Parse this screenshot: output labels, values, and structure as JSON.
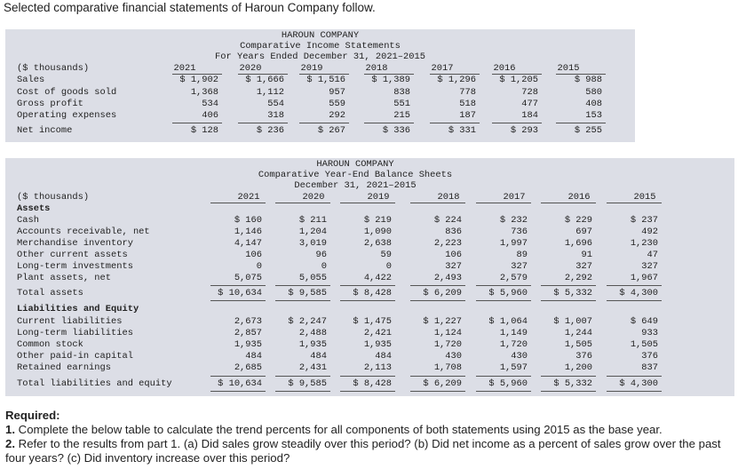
{
  "intro": "Selected comparative financial statements of Haroun Company follow.",
  "income": {
    "title": [
      "HAROUN COMPANY",
      "Comparative Income Statements",
      "For Years Ended December 31, 2021–2015"
    ],
    "unit_label": "($ thousands)",
    "years": [
      "2021",
      "2020",
      "2019",
      "2018",
      "2017",
      "2016",
      "2015"
    ],
    "rows": [
      {
        "label": "Sales",
        "values": [
          "$ 1,902",
          "$ 1,666",
          "$ 1,516",
          "$ 1,389",
          "$ 1,296",
          "$ 1,205",
          "$ 988"
        ]
      },
      {
        "label": "Cost of goods sold",
        "values": [
          "1,368",
          "1,112",
          "957",
          "838",
          "778",
          "728",
          "580"
        ]
      },
      {
        "label": "Gross profit",
        "values": [
          "534",
          "554",
          "559",
          "551",
          "518",
          "477",
          "408"
        ]
      },
      {
        "label": "Operating expenses",
        "values": [
          "406",
          "318",
          "292",
          "215",
          "187",
          "184",
          "153"
        ]
      },
      {
        "label": "Net income",
        "values": [
          "$ 128",
          "$ 236",
          "$ 267",
          "$ 336",
          "$ 331",
          "$ 293",
          "$ 255"
        ]
      }
    ]
  },
  "balance": {
    "title": [
      "HAROUN COMPANY",
      "Comparative Year-End Balance Sheets",
      "December 31, 2021–2015"
    ],
    "unit_label": "($ thousands)",
    "years": [
      "2021",
      "2020",
      "2019",
      "2018",
      "2017",
      "2016",
      "2015"
    ],
    "assets_heading": "Assets",
    "liab_heading": "Liabilities and Equity",
    "assets": [
      {
        "label": "Cash",
        "values": [
          "$ 160",
          "$ 211",
          "$ 219",
          "$ 224",
          "$ 232",
          "$ 229",
          "$ 237"
        ]
      },
      {
        "label": "Accounts receivable, net",
        "values": [
          "1,146",
          "1,204",
          "1,090",
          "836",
          "736",
          "697",
          "492"
        ]
      },
      {
        "label": "Merchandise inventory",
        "values": [
          "4,147",
          "3,019",
          "2,638",
          "2,223",
          "1,997",
          "1,696",
          "1,230"
        ]
      },
      {
        "label": "Other current assets",
        "values": [
          "106",
          "96",
          "59",
          "106",
          "89",
          "91",
          "47"
        ]
      },
      {
        "label": "Long-term investments",
        "values": [
          "0",
          "0",
          "0",
          "327",
          "327",
          "327",
          "327"
        ]
      },
      {
        "label": "Plant assets, net",
        "values": [
          "5,075",
          "5,055",
          "4,422",
          "2,493",
          "2,579",
          "2,292",
          "1,967"
        ]
      }
    ],
    "total_assets": {
      "label": "Total assets",
      "values": [
        "$ 10,634",
        "$ 9,585",
        "$ 8,428",
        "$ 6,209",
        "$ 5,960",
        "$ 5,332",
        "$ 4,300"
      ]
    },
    "liabilities": [
      {
        "label": "Current liabilities",
        "values": [
          "2,673",
          "$ 2,247",
          "$ 1,475",
          "$ 1,227",
          "$ 1,064",
          "$ 1,007",
          "$ 649"
        ]
      },
      {
        "label": "Long-term liabilities",
        "values": [
          "2,857",
          "2,488",
          "2,421",
          "1,124",
          "1,149",
          "1,244",
          "933"
        ]
      },
      {
        "label": "Common stock",
        "values": [
          "1,935",
          "1,935",
          "1,935",
          "1,720",
          "1,720",
          "1,505",
          "1,505"
        ]
      },
      {
        "label": "Other paid-in capital",
        "values": [
          "484",
          "484",
          "484",
          "430",
          "430",
          "376",
          "376"
        ]
      },
      {
        "label": "Retained earnings",
        "values": [
          "2,685",
          "2,431",
          "2,113",
          "1,708",
          "1,597",
          "1,200",
          "837"
        ]
      }
    ],
    "total_liab": {
      "label": "Total liabilities and equity",
      "values": [
        "$ 10,634",
        "$ 9,585",
        "$ 8,428",
        "$ 6,209",
        "$ 5,960",
        "$ 5,332",
        "$ 4,300"
      ]
    }
  },
  "required": {
    "heading": "Required:",
    "item1_num": "1.",
    "item1_text": "Complete the below table to calculate the trend percents for all components of both statements using 2015 as the base year.",
    "item2_num": "2.",
    "item2_text": "Refer to the results from part 1. (a) Did sales grow steadily over this period? (b) Did net income as a percent of sales grow over the past four years? (c) Did inventory increase over this period?"
  }
}
